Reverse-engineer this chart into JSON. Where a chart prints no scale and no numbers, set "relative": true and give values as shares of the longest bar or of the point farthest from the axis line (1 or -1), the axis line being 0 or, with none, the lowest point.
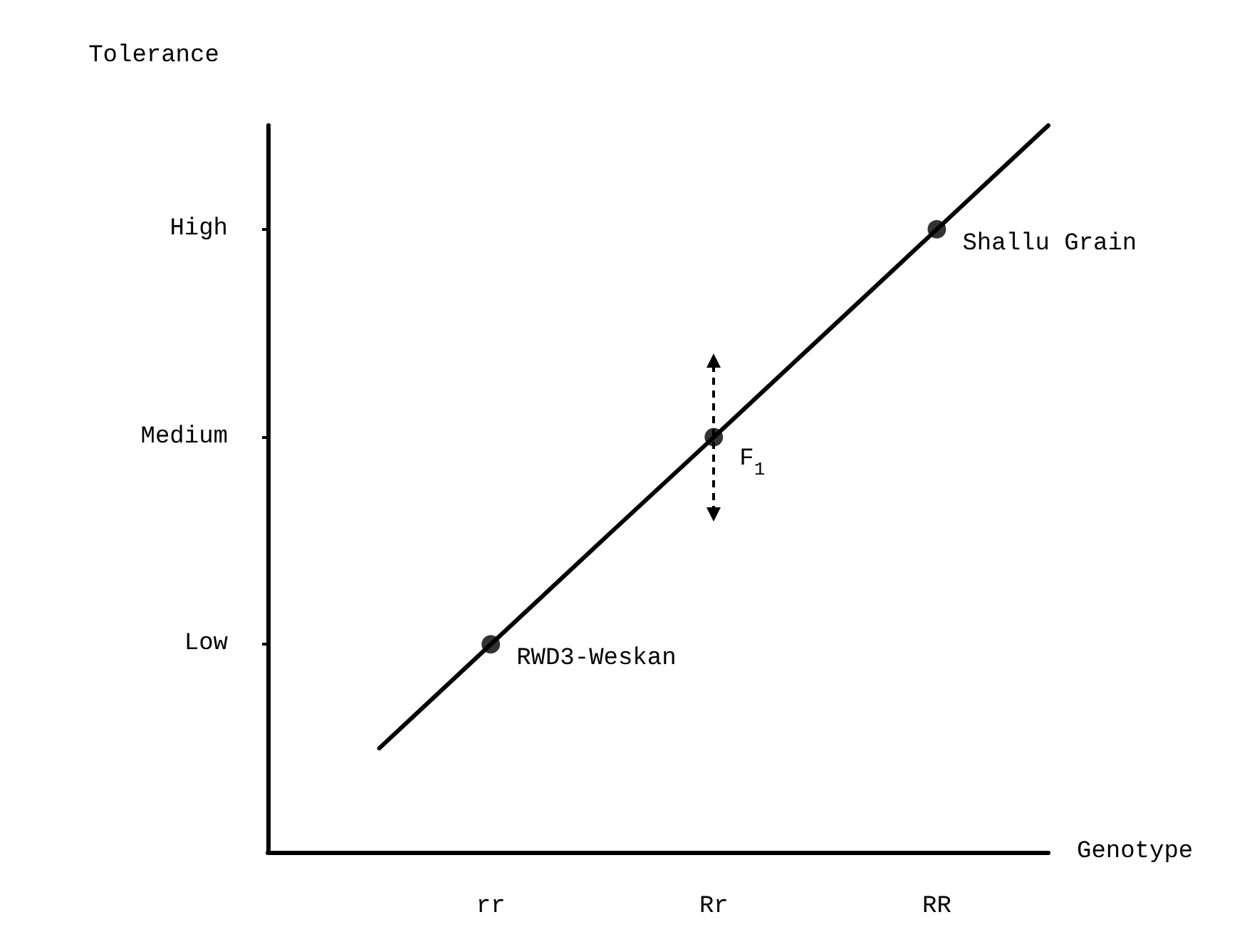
{
  "chart_data": {
    "type": "line",
    "xlabel": "Genotype",
    "ylabel": "Tolerance",
    "relative": true,
    "categories": [
      null,
      null,
      "rr",
      null,
      "Rr",
      null,
      "RR",
      null
    ],
    "series": [
      {
        "color": "#000000",
        "values": [
          null,
          0.143,
          0.286,
          0.429,
          0.571,
          0.714,
          0.857,
          1
        ],
        "marker": "none",
        "line_style": "solid"
      },
      {
        "type": "scatter",
        "color": "#000000",
        "x": [
          "rr",
          "Rr",
          "RR"
        ],
        "values": [
          0.286,
          0.571,
          0.857
        ],
        "marker": "circle"
      }
    ],
    "annotations": [
      "Low",
      "Medium",
      "High",
      {
        "text": "RWD3-Weskan",
        "x": "rr",
        "y": 0.286
      },
      {
        "text": "F$_{1}$",
        "x": "Rr",
        "y": 0.571
      },
      {
        "text": "Shallu Grain",
        "x": "RR",
        "y": 0.857
      }
    ]
  }
}
